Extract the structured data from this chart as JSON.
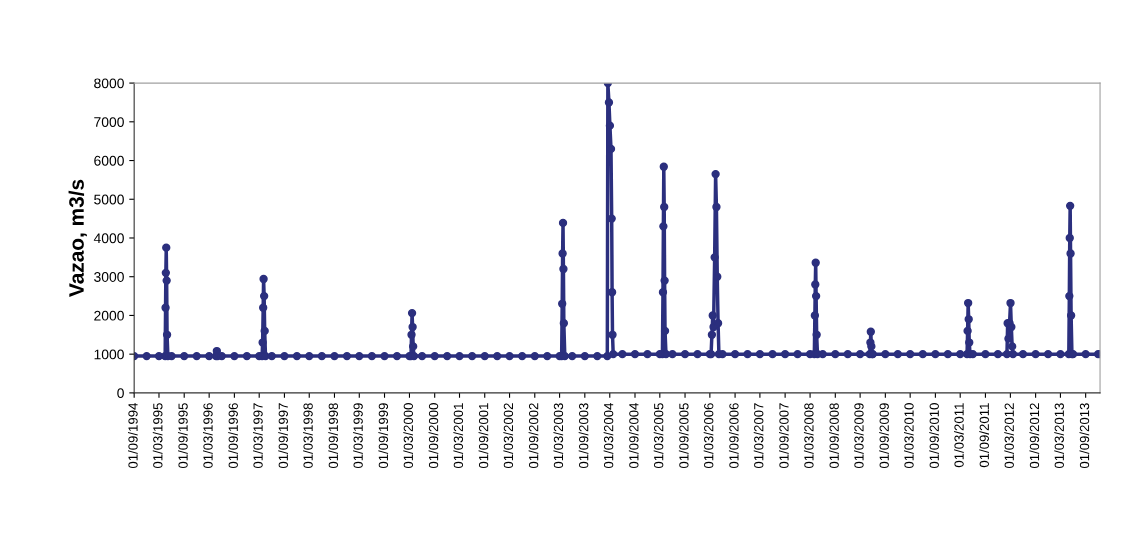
{
  "chart_data": {
    "type": "line",
    "ylabel": "Vazao, m3/s",
    "series": [
      {
        "color": "#2b2f7e",
        "x": [
          "1994-09-01",
          "1994-12-01",
          "1995-03-01",
          "1995-04-15",
          "1995-04-18",
          "1995-04-20",
          "1995-04-23",
          "1995-04-26",
          "1995-04-29",
          "1995-05-05",
          "1995-06-01",
          "1995-09-01",
          "1995-12-01",
          "1996-03-01",
          "1996-04-20",
          "1996-04-26",
          "1996-05-02",
          "1996-06-01",
          "1996-09-01",
          "1996-12-01",
          "1997-03-01",
          "1997-03-22",
          "1997-03-26",
          "1997-03-30",
          "1997-04-02",
          "1997-04-06",
          "1997-04-10",
          "1997-04-16",
          "1997-06-01",
          "1997-09-01",
          "1997-12-01",
          "1998-03-01",
          "1998-06-01",
          "1998-09-01",
          "1998-12-01",
          "1999-03-01",
          "1999-06-01",
          "1999-09-01",
          "1999-12-01",
          "2000-03-01",
          "2000-03-12",
          "2000-03-16",
          "2000-03-20",
          "2000-03-24",
          "2000-03-28",
          "2000-04-03",
          "2000-06-01",
          "2000-09-01",
          "2000-12-01",
          "2001-03-01",
          "2001-06-01",
          "2001-09-01",
          "2001-12-01",
          "2002-03-01",
          "2002-06-01",
          "2002-09-01",
          "2002-12-01",
          "2003-03-01",
          "2003-03-16",
          "2003-03-20",
          "2003-03-23",
          "2003-03-26",
          "2003-03-29",
          "2003-04-01",
          "2003-04-08",
          "2003-06-01",
          "2003-09-01",
          "2003-12-01",
          "2004-02-12",
          "2004-02-16",
          "2004-02-24",
          "2004-03-02",
          "2004-03-10",
          "2004-03-15",
          "2004-03-18",
          "2004-03-21",
          "2004-03-26",
          "2004-06-01",
          "2004-09-01",
          "2004-12-01",
          "2005-03-01",
          "2005-03-20",
          "2005-03-24",
          "2005-03-27",
          "2005-03-30",
          "2005-04-02",
          "2005-04-05",
          "2005-04-08",
          "2005-04-15",
          "2005-06-01",
          "2005-09-01",
          "2005-12-01",
          "2006-03-01",
          "2006-03-10",
          "2006-03-16",
          "2006-03-22",
          "2006-03-28",
          "2006-04-05",
          "2006-04-12",
          "2006-04-18",
          "2006-04-24",
          "2006-04-30",
          "2006-05-06",
          "2006-06-01",
          "2006-09-01",
          "2006-12-01",
          "2007-03-01",
          "2007-06-01",
          "2007-09-01",
          "2007-12-01",
          "2008-03-01",
          "2008-04-01",
          "2008-04-05",
          "2008-04-08",
          "2008-04-11",
          "2008-04-14",
          "2008-04-18",
          "2008-04-24",
          "2008-06-01",
          "2008-09-01",
          "2008-12-01",
          "2009-03-01",
          "2009-05-10",
          "2009-05-15",
          "2009-05-18",
          "2009-05-22",
          "2009-05-28",
          "2009-06-01",
          "2009-09-01",
          "2009-12-01",
          "2010-03-01",
          "2010-06-01",
          "2010-09-01",
          "2010-12-01",
          "2011-03-01",
          "2011-04-20",
          "2011-04-24",
          "2011-04-28",
          "2011-05-02",
          "2011-05-06",
          "2011-05-12",
          "2011-06-01",
          "2011-09-01",
          "2011-12-01",
          "2012-02-05",
          "2012-02-10",
          "2012-02-16",
          "2012-02-24",
          "2012-03-02",
          "2012-03-08",
          "2012-03-14",
          "2012-03-20",
          "2012-06-01",
          "2012-09-01",
          "2012-12-01",
          "2013-03-01",
          "2013-05-01",
          "2013-05-05",
          "2013-05-08",
          "2013-05-11",
          "2013-05-14",
          "2013-05-18",
          "2013-05-24",
          "2013-06-01",
          "2013-09-01",
          "2013-12-01",
          "2013-12-15"
        ],
        "values": [
          950,
          950,
          950,
          950,
          2200,
          3100,
          3750,
          2900,
          1500,
          950,
          950,
          950,
          950,
          950,
          950,
          1080,
          950,
          950,
          950,
          950,
          950,
          950,
          1300,
          2200,
          2940,
          2500,
          1600,
          950,
          950,
          950,
          950,
          950,
          950,
          950,
          950,
          950,
          950,
          950,
          950,
          950,
          950,
          1500,
          2060,
          1700,
          1200,
          950,
          950,
          950,
          950,
          950,
          950,
          950,
          950,
          950,
          950,
          950,
          950,
          950,
          950,
          2300,
          3600,
          4390,
          3200,
          1800,
          950,
          950,
          950,
          950,
          950,
          8000,
          7500,
          6900,
          6300,
          4500,
          2600,
          1500,
          1000,
          1000,
          1000,
          1000,
          1000,
          1000,
          2600,
          4300,
          5840,
          4800,
          2900,
          1600,
          1000,
          1000,
          1000,
          1000,
          1000,
          1000,
          1500,
          2000,
          1700,
          3500,
          5650,
          4800,
          3000,
          1800,
          1000,
          1000,
          1000,
          1000,
          1000,
          1000,
          1000,
          1000,
          1000,
          1000,
          2000,
          2800,
          3360,
          2500,
          1500,
          1000,
          1000,
          1000,
          1000,
          1000,
          1000,
          1300,
          1580,
          1200,
          1000,
          1000,
          1000,
          1000,
          1000,
          1000,
          1000,
          1000,
          1000,
          1000,
          1600,
          2320,
          1900,
          1300,
          1000,
          1000,
          1000,
          1000,
          1000,
          1800,
          1400,
          1800,
          2320,
          1700,
          1200,
          1000,
          1000,
          1000,
          1000,
          1000,
          1000,
          2500,
          4000,
          4830,
          3600,
          2000,
          1000,
          1000,
          1000,
          1000,
          1000
        ]
      }
    ],
    "xlim": [
      "1994-09-01",
      "2013-12-15"
    ],
    "xticks": [
      {
        "value": "1994-09-01",
        "label": "01/09/1994"
      },
      {
        "value": "1995-03-01",
        "label": "01/03/1995"
      },
      {
        "value": "1995-09-01",
        "label": "01/09/1995"
      },
      {
        "value": "1996-03-01",
        "label": "01/03/1996"
      },
      {
        "value": "1996-09-01",
        "label": "01/09/1996"
      },
      {
        "value": "1997-03-01",
        "label": "01/03/1997"
      },
      {
        "value": "1997-09-01",
        "label": "01/09/1997"
      },
      {
        "value": "1998-03-01",
        "label": "01/03/1998"
      },
      {
        "value": "1998-09-01",
        "label": "01/09/1998"
      },
      {
        "value": "1999-03-01",
        "label": "01/03/1999"
      },
      {
        "value": "1999-09-01",
        "label": "01/09/1999"
      },
      {
        "value": "2000-03-01",
        "label": "01/03/2000"
      },
      {
        "value": "2000-09-01",
        "label": "01/09/2000"
      },
      {
        "value": "2001-03-01",
        "label": "01/03/2001"
      },
      {
        "value": "2001-09-01",
        "label": "01/09/2001"
      },
      {
        "value": "2002-03-01",
        "label": "01/03/2002"
      },
      {
        "value": "2002-09-01",
        "label": "01/09/2002"
      },
      {
        "value": "2003-03-01",
        "label": "01/03/2003"
      },
      {
        "value": "2003-09-01",
        "label": "01/09/2003"
      },
      {
        "value": "2004-03-01",
        "label": "01/03/2004"
      },
      {
        "value": "2004-09-01",
        "label": "01/09/2004"
      },
      {
        "value": "2005-03-01",
        "label": "01/03/2005"
      },
      {
        "value": "2005-09-01",
        "label": "01/09/2005"
      },
      {
        "value": "2006-03-01",
        "label": "01/03/2006"
      },
      {
        "value": "2006-09-01",
        "label": "01/09/2006"
      },
      {
        "value": "2007-03-01",
        "label": "01/03/2007"
      },
      {
        "value": "2007-09-01",
        "label": "01/09/2007"
      },
      {
        "value": "2008-03-01",
        "label": "01/03/2008"
      },
      {
        "value": "2008-09-01",
        "label": "01/09/2008"
      },
      {
        "value": "2009-03-01",
        "label": "01/03/2009"
      },
      {
        "value": "2009-09-01",
        "label": "01/09/2009"
      },
      {
        "value": "2010-03-01",
        "label": "01/03/2010"
      },
      {
        "value": "2010-09-01",
        "label": "01/09/2010"
      },
      {
        "value": "2011-03-01",
        "label": "01/03/2011"
      },
      {
        "value": "2011-09-01",
        "label": "01/09/2011"
      },
      {
        "value": "2012-03-01",
        "label": "01/03/2012"
      },
      {
        "value": "2012-09-01",
        "label": "01/09/2012"
      },
      {
        "value": "2013-03-01",
        "label": "01/03/2013"
      },
      {
        "value": "2013-09-01",
        "label": "01/09/2013"
      }
    ],
    "ylim": [
      0,
      8000
    ],
    "yticks": [
      0,
      1000,
      2000,
      3000,
      4000,
      5000,
      6000,
      7000,
      8000
    ],
    "grid": false,
    "marker": "circle",
    "line_style": "solid"
  }
}
